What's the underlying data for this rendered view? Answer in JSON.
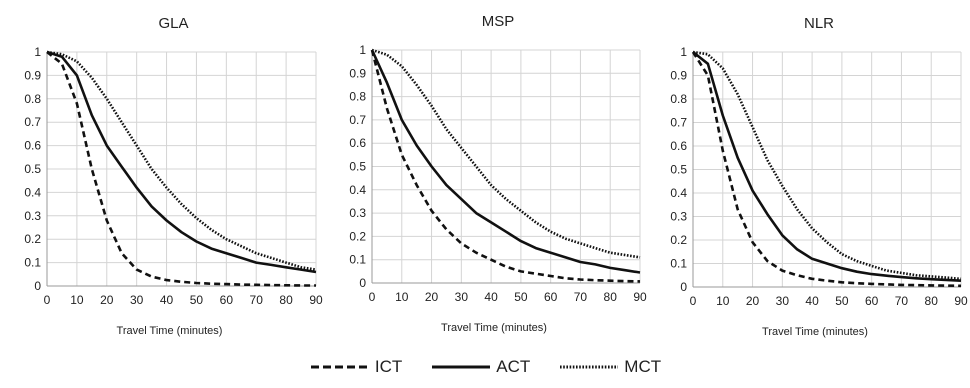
{
  "chart_data": [
    {
      "type": "line",
      "title": "GLA",
      "xlabel": "Travel Time (minutes)",
      "ylabel": "",
      "xlim": [
        0,
        90
      ],
      "ylim": [
        0,
        1
      ],
      "xticks": [
        0,
        10,
        20,
        30,
        40,
        50,
        60,
        70,
        80,
        90
      ],
      "yticks": [
        0,
        0.1,
        0.2,
        0.3,
        0.4,
        0.5,
        0.6,
        0.7,
        0.8,
        0.9,
        1
      ],
      "grid": true,
      "x": [
        0,
        5,
        10,
        15,
        20,
        25,
        30,
        35,
        40,
        45,
        50,
        55,
        60,
        65,
        70,
        75,
        80,
        85,
        90
      ],
      "series": [
        {
          "name": "ICT",
          "style": "dashed",
          "values": [
            1,
            0.95,
            0.78,
            0.5,
            0.28,
            0.14,
            0.07,
            0.04,
            0.025,
            0.018,
            0.013,
            0.01,
            0.008,
            0.006,
            0.005,
            0.004,
            0.003,
            0.002,
            0.002
          ]
        },
        {
          "name": "ACT",
          "style": "solid",
          "values": [
            1,
            0.98,
            0.9,
            0.73,
            0.6,
            0.51,
            0.42,
            0.34,
            0.28,
            0.23,
            0.19,
            0.16,
            0.14,
            0.12,
            0.1,
            0.09,
            0.08,
            0.07,
            0.06
          ]
        },
        {
          "name": "MCT",
          "style": "dotted",
          "values": [
            1,
            0.99,
            0.96,
            0.89,
            0.8,
            0.7,
            0.6,
            0.5,
            0.42,
            0.35,
            0.29,
            0.24,
            0.2,
            0.17,
            0.14,
            0.12,
            0.1,
            0.08,
            0.07
          ]
        }
      ]
    },
    {
      "type": "line",
      "title": "MSP",
      "xlabel": "Travel Time (minutes)",
      "ylabel": "",
      "xlim": [
        0,
        90
      ],
      "ylim": [
        0,
        1
      ],
      "xticks": [
        0,
        10,
        20,
        30,
        40,
        50,
        60,
        70,
        80,
        90
      ],
      "yticks": [
        0,
        0.1,
        0.2,
        0.3,
        0.4,
        0.5,
        0.6,
        0.7,
        0.8,
        0.9,
        1
      ],
      "grid": true,
      "x": [
        0,
        5,
        10,
        15,
        20,
        25,
        30,
        35,
        40,
        45,
        50,
        55,
        60,
        65,
        70,
        75,
        80,
        85,
        90
      ],
      "series": [
        {
          "name": "ICT",
          "style": "dashed",
          "values": [
            1,
            0.75,
            0.55,
            0.42,
            0.31,
            0.23,
            0.17,
            0.13,
            0.1,
            0.07,
            0.05,
            0.04,
            0.03,
            0.02,
            0.015,
            0.012,
            0.01,
            0.008,
            0.007
          ]
        },
        {
          "name": "ACT",
          "style": "solid",
          "values": [
            1,
            0.86,
            0.7,
            0.59,
            0.5,
            0.42,
            0.36,
            0.3,
            0.26,
            0.22,
            0.18,
            0.15,
            0.13,
            0.11,
            0.09,
            0.08,
            0.065,
            0.055,
            0.045
          ]
        },
        {
          "name": "MCT",
          "style": "dotted",
          "values": [
            1,
            0.98,
            0.93,
            0.85,
            0.76,
            0.66,
            0.58,
            0.5,
            0.42,
            0.36,
            0.31,
            0.26,
            0.22,
            0.19,
            0.17,
            0.15,
            0.13,
            0.12,
            0.11
          ]
        }
      ]
    },
    {
      "type": "line",
      "title": "NLR",
      "xlabel": "Travel Time (minutes)",
      "ylabel": "",
      "xlim": [
        0,
        90
      ],
      "ylim": [
        0,
        1
      ],
      "xticks": [
        0,
        10,
        20,
        30,
        40,
        50,
        60,
        70,
        80,
        90
      ],
      "yticks": [
        0,
        0.1,
        0.2,
        0.3,
        0.4,
        0.5,
        0.6,
        0.7,
        0.8,
        0.9,
        1
      ],
      "grid": true,
      "x": [
        0,
        5,
        10,
        15,
        20,
        25,
        30,
        35,
        40,
        45,
        50,
        55,
        60,
        65,
        70,
        75,
        80,
        85,
        90
      ],
      "series": [
        {
          "name": "ICT",
          "style": "dashed",
          "values": [
            1,
            0.9,
            0.58,
            0.33,
            0.19,
            0.11,
            0.07,
            0.05,
            0.035,
            0.027,
            0.02,
            0.016,
            0.013,
            0.011,
            0.009,
            0.008,
            0.007,
            0.006,
            0.005
          ]
        },
        {
          "name": "ACT",
          "style": "solid",
          "values": [
            1,
            0.95,
            0.73,
            0.55,
            0.41,
            0.31,
            0.22,
            0.16,
            0.12,
            0.1,
            0.08,
            0.065,
            0.055,
            0.048,
            0.042,
            0.037,
            0.033,
            0.03,
            0.027
          ]
        },
        {
          "name": "MCT",
          "style": "dotted",
          "values": [
            1,
            0.99,
            0.93,
            0.82,
            0.68,
            0.54,
            0.43,
            0.33,
            0.25,
            0.19,
            0.14,
            0.11,
            0.09,
            0.07,
            0.06,
            0.05,
            0.045,
            0.04,
            0.035
          ]
        }
      ]
    }
  ],
  "legend": {
    "placement": "bottom-center",
    "items": [
      {
        "label": "ICT",
        "style": "dashed"
      },
      {
        "label": "ACT",
        "style": "solid"
      },
      {
        "label": "MCT",
        "style": "dotted"
      }
    ]
  },
  "colors": {
    "line": "#111111",
    "grid": "#d4d4d4",
    "axis": "#9a9a9a",
    "text": "#222222"
  }
}
